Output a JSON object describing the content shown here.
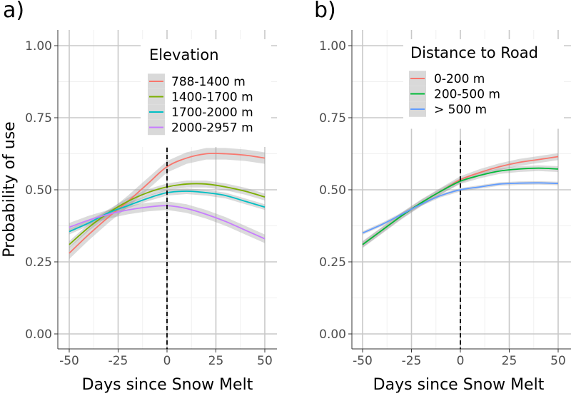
{
  "chart_data": [
    {
      "panel": "a)",
      "type": "line",
      "xlabel": "Days since Snow Melt",
      "ylabel": "Probability of use",
      "xlim": [
        -50,
        50
      ],
      "ylim": [
        0,
        1
      ],
      "xticks": [
        -50,
        -25,
        0,
        25,
        50
      ],
      "yticks": [
        0,
        0.25,
        0.5,
        0.75,
        1.0
      ],
      "xtick_labels": [
        "-50",
        "-25",
        "0",
        "25",
        "50"
      ],
      "ytick_labels": [
        "0.00",
        "0.25",
        "0.50",
        "0.75",
        "1.00"
      ],
      "vline_x": 0,
      "grid": true,
      "legend": {
        "title": "Elevation",
        "placement": "top-right",
        "entries": [
          "788-1400 m",
          "1400-1700 m",
          "1700-2000 m",
          "2000-2957 m"
        ]
      },
      "x": [
        -50,
        -40,
        -30,
        -20,
        -10,
        0,
        10,
        20,
        30,
        40,
        50
      ],
      "series": [
        {
          "name": "788-1400 m",
          "color": "#F8766D",
          "ci": 0.02,
          "values": [
            0.28,
            0.345,
            0.405,
            0.46,
            0.52,
            0.58,
            0.61,
            0.625,
            0.625,
            0.62,
            0.61
          ]
        },
        {
          "name": "1400-1700 m",
          "color": "#7CAE00",
          "ci": 0.012,
          "values": [
            0.31,
            0.37,
            0.42,
            0.46,
            0.49,
            0.51,
            0.52,
            0.52,
            0.51,
            0.495,
            0.475
          ]
        },
        {
          "name": "1700-2000 m",
          "color": "#00BFC4",
          "ci": 0.01,
          "values": [
            0.355,
            0.385,
            0.42,
            0.445,
            0.47,
            0.49,
            0.495,
            0.49,
            0.48,
            0.46,
            0.44
          ]
        },
        {
          "name": "2000-2957 m",
          "color": "#C77CFF",
          "ci": 0.015,
          "values": [
            0.37,
            0.395,
            0.415,
            0.43,
            0.44,
            0.445,
            0.435,
            0.415,
            0.39,
            0.36,
            0.33
          ]
        }
      ]
    },
    {
      "panel": "b)",
      "type": "line",
      "xlabel": "Days since Snow Melt",
      "ylabel": "",
      "xlim": [
        -50,
        50
      ],
      "ylim": [
        0,
        1
      ],
      "xticks": [
        -50,
        -25,
        0,
        25,
        50
      ],
      "yticks": [
        0,
        0.25,
        0.5,
        0.75,
        1.0
      ],
      "xtick_labels": [
        "-50",
        "-25",
        "0",
        "25",
        "50"
      ],
      "ytick_labels": [
        "0.00",
        "0.25",
        "0.50",
        "0.75",
        "1.00"
      ],
      "vline_x": 0,
      "grid": true,
      "legend": {
        "title": "Distance to Road",
        "placement": "top-right",
        "entries": [
          "0-200 m",
          "200-500 m",
          "> 500 m"
        ]
      },
      "x": [
        -50,
        -40,
        -30,
        -20,
        -10,
        0,
        10,
        20,
        30,
        40,
        50
      ],
      "series": [
        {
          "name": "0-200 m",
          "color": "#F8766D",
          "ci": 0.012,
          "values": [
            0.31,
            0.36,
            0.41,
            0.455,
            0.495,
            0.535,
            0.56,
            0.58,
            0.595,
            0.605,
            0.615
          ]
        },
        {
          "name": "200-500 m",
          "color": "#00BA38",
          "ci": 0.01,
          "values": [
            0.31,
            0.36,
            0.41,
            0.455,
            0.495,
            0.53,
            0.55,
            0.565,
            0.572,
            0.575,
            0.572
          ]
        },
        {
          "name": "> 500 m",
          "color": "#619CFF",
          "ci": 0.006,
          "values": [
            0.35,
            0.38,
            0.415,
            0.45,
            0.48,
            0.5,
            0.51,
            0.52,
            0.523,
            0.524,
            0.522
          ]
        }
      ]
    }
  ]
}
